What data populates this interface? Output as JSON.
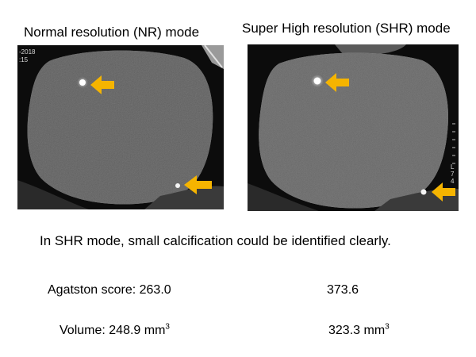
{
  "panels": {
    "left": {
      "title": "Normal resolution (NR) mode",
      "overlay_text": [
        "-2018",
        ":15"
      ]
    },
    "right": {
      "title": "Super High resolution (SHR) mode",
      "overlay_text": [
        "L",
        "7",
        "4"
      ]
    }
  },
  "caption": "In SHR mode, small calcification could be identified clearly.",
  "metrics": {
    "agatston": {
      "label": "Agatston score:",
      "nr": "263.0",
      "shr": "373.6"
    },
    "volume": {
      "label": "Volume:",
      "nr": "248.9",
      "shr": "323.3",
      "unit": "mm",
      "unit_sup": "3"
    }
  },
  "colors": {
    "arrow": "#f5b400",
    "background": "#ffffff",
    "scan_background": "#0c0c0c",
    "tissue": "#7e7e7e"
  },
  "icons": [
    "arrow-icon"
  ]
}
